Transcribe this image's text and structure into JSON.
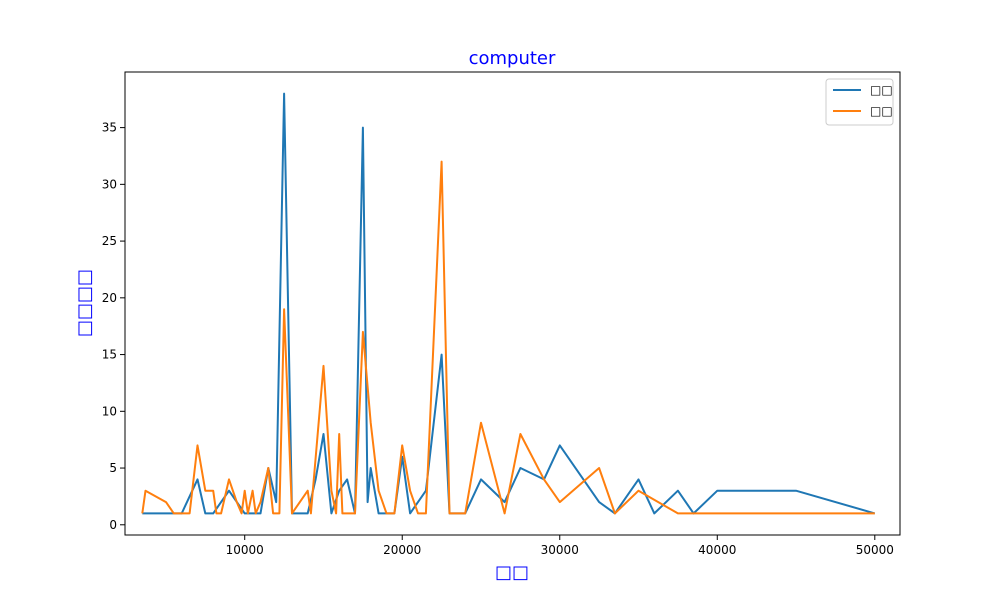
{
  "chart_data": {
    "type": "line",
    "title": "computer",
    "xlabel": "□□",
    "ylabel": "□□□□",
    "xlim": [
      2400,
      51600
    ],
    "ylim": [
      -0.9,
      39.9
    ],
    "xticks": [
      10000,
      20000,
      30000,
      40000,
      50000
    ],
    "yticks": [
      0,
      5,
      10,
      15,
      20,
      25,
      30,
      35
    ],
    "grid": false,
    "legend_position": "top-right",
    "series": [
      {
        "name": "□□",
        "color": "#1f77b4",
        "points": [
          [
            3500,
            1
          ],
          [
            6000,
            1
          ],
          [
            7000,
            4
          ],
          [
            7500,
            1
          ],
          [
            8000,
            1
          ],
          [
            9000,
            3
          ],
          [
            10000,
            1
          ],
          [
            11000,
            1
          ],
          [
            11500,
            5
          ],
          [
            12000,
            2
          ],
          [
            12500,
            38
          ],
          [
            13000,
            1
          ],
          [
            14000,
            1
          ],
          [
            14500,
            4
          ],
          [
            15000,
            8
          ],
          [
            15500,
            1
          ],
          [
            16000,
            3
          ],
          [
            16500,
            4
          ],
          [
            17000,
            1
          ],
          [
            17500,
            35
          ],
          [
            17800,
            2
          ],
          [
            18000,
            5
          ],
          [
            18500,
            1
          ],
          [
            19500,
            1
          ],
          [
            20000,
            6
          ],
          [
            20500,
            1
          ],
          [
            21500,
            3
          ],
          [
            22500,
            15
          ],
          [
            23000,
            1
          ],
          [
            24000,
            1
          ],
          [
            25000,
            4
          ],
          [
            26500,
            2
          ],
          [
            27500,
            5
          ],
          [
            29000,
            4
          ],
          [
            30000,
            7
          ],
          [
            32500,
            2
          ],
          [
            33500,
            1
          ],
          [
            35000,
            4
          ],
          [
            36000,
            1
          ],
          [
            37500,
            3
          ],
          [
            38500,
            1
          ],
          [
            40000,
            3
          ],
          [
            45000,
            3
          ],
          [
            50000,
            1
          ]
        ]
      },
      {
        "name": "□□",
        "color": "#ff7f0e",
        "points": [
          [
            3500,
            1
          ],
          [
            3700,
            3
          ],
          [
            5000,
            2
          ],
          [
            5500,
            1
          ],
          [
            6500,
            1
          ],
          [
            7000,
            7
          ],
          [
            7500,
            3
          ],
          [
            8000,
            3
          ],
          [
            8200,
            1
          ],
          [
            8500,
            1
          ],
          [
            9000,
            4
          ],
          [
            9500,
            2
          ],
          [
            9800,
            1
          ],
          [
            10000,
            3
          ],
          [
            10200,
            1
          ],
          [
            10500,
            3
          ],
          [
            10700,
            1
          ],
          [
            11000,
            2
          ],
          [
            11500,
            5
          ],
          [
            11800,
            1
          ],
          [
            12200,
            1
          ],
          [
            12500,
            19
          ],
          [
            13000,
            1
          ],
          [
            14000,
            3
          ],
          [
            14200,
            1
          ],
          [
            15000,
            14
          ],
          [
            15500,
            3
          ],
          [
            15800,
            1
          ],
          [
            16000,
            8
          ],
          [
            16200,
            1
          ],
          [
            17000,
            1
          ],
          [
            17500,
            17
          ],
          [
            18000,
            9
          ],
          [
            18500,
            3
          ],
          [
            19000,
            1
          ],
          [
            19500,
            1
          ],
          [
            20000,
            7
          ],
          [
            20500,
            3
          ],
          [
            21000,
            1
          ],
          [
            21500,
            1
          ],
          [
            22500,
            32
          ],
          [
            23000,
            1
          ],
          [
            24000,
            1
          ],
          [
            25000,
            9
          ],
          [
            26500,
            1
          ],
          [
            27500,
            8
          ],
          [
            29000,
            4
          ],
          [
            30000,
            2
          ],
          [
            32500,
            5
          ],
          [
            33500,
            1
          ],
          [
            35000,
            3
          ],
          [
            37500,
            1
          ],
          [
            50000,
            1
          ]
        ]
      }
    ]
  }
}
